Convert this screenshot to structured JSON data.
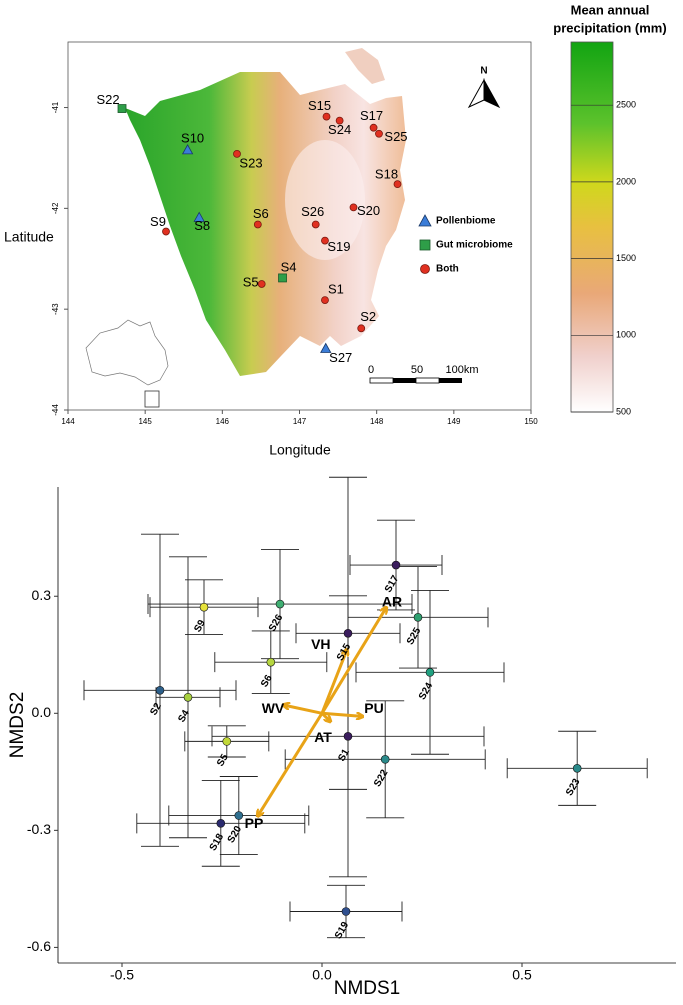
{
  "chart_data": [
    {
      "type": "map",
      "x_label": "Longitude",
      "y_label": "Latitude",
      "xlim": [
        144,
        150
      ],
      "ylim": [
        -44,
        -40.35
      ],
      "xticks": [
        144,
        145,
        146,
        147,
        148,
        149,
        150
      ],
      "yticks": [
        -44,
        -43,
        -42,
        -41
      ],
      "colorbar": {
        "title": [
          "Mean annual",
          "precipitation (mm)"
        ],
        "lim": [
          500,
          2912
        ],
        "ticks": [
          500,
          1000,
          1500,
          2000,
          2500
        ]
      },
      "north": "N",
      "scale_bar": [
        "0",
        "50",
        "100km"
      ],
      "series": [
        {
          "name": "Pollenbiome",
          "marker": "triangle",
          "color": "#3b7dd8",
          "labels": [
            "S10",
            "S8",
            "S27"
          ],
          "x": [
            145.55,
            145.7,
            147.34
          ],
          "y": [
            -41.42,
            -42.09,
            -43.39
          ]
        },
        {
          "name": "Gut microbiome",
          "marker": "square",
          "color": "#2e9e48",
          "labels": [
            "S22",
            "S4"
          ],
          "x": [
            144.7,
            146.78
          ],
          "y": [
            -41.01,
            -42.69
          ]
        },
        {
          "name": "Both",
          "marker": "circle",
          "color": "#e03020",
          "labels": [
            "S23",
            "S15",
            "S24",
            "S17",
            "S25",
            "S18",
            "S26",
            "S20",
            "S19",
            "S6",
            "S9",
            "S5",
            "S1",
            "S2"
          ],
          "x": [
            146.19,
            147.35,
            147.52,
            147.96,
            148.03,
            148.27,
            147.21,
            147.7,
            147.33,
            146.46,
            145.27,
            146.51,
            147.33,
            147.8
          ],
          "y": [
            -41.46,
            -41.09,
            -41.13,
            -41.2,
            -41.26,
            -41.76,
            -42.16,
            -41.99,
            -42.32,
            -42.16,
            -42.23,
            -42.75,
            -42.91,
            -43.19
          ]
        }
      ]
    },
    {
      "type": "scatter",
      "x_label": "NMDS1",
      "y_label": "NMDS2",
      "xlim": [
        -0.66,
        0.885
      ],
      "ylim": [
        -0.64,
        0.58
      ],
      "xticks": [
        -0.5,
        {
          "value": 0,
          "label": "0.0"
        },
        0.5
      ],
      "yticks": [
        -0.6,
        -0.3,
        {
          "value": 0,
          "label": "0.0"
        },
        0.3
      ],
      "labels": [
        "S2",
        "S4",
        "S9",
        "S26",
        "S6",
        "S5",
        "S1",
        "S22",
        "S24",
        "S25",
        "S23",
        "S18",
        "S20",
        "S19",
        "S17",
        "S15"
      ],
      "x": [
        -0.405,
        -0.335,
        -0.295,
        -0.105,
        -0.128,
        -0.238,
        0.065,
        0.158,
        0.27,
        0.24,
        0.638,
        -0.253,
        -0.208,
        0.06,
        0.185,
        0.065
      ],
      "y": [
        0.059,
        0.041,
        0.272,
        0.28,
        0.131,
        -0.072,
        -0.059,
        -0.118,
        0.105,
        0.246,
        -0.141,
        -0.282,
        -0.262,
        -0.508,
        0.38,
        0.205
      ],
      "xerr": [
        0.19,
        0.08,
        0.135,
        0.33,
        0.14,
        0.105,
        0.34,
        0.25,
        0.185,
        0.175,
        0.175,
        0.21,
        0.175,
        0.14,
        0.115,
        0.13
      ],
      "yerr": [
        0.4,
        0.36,
        0.07,
        0.14,
        0.08,
        0.04,
        0.36,
        0.15,
        0.21,
        0.13,
        0.095,
        0.11,
        0.1,
        0.067,
        0.115,
        0.4
      ],
      "colors": [
        "#2c5f8a",
        "#a8d040",
        "#e6e23a",
        "#3fae72",
        "#b6d640",
        "#c2d838",
        "#3b1d5e",
        "#2a8a8a",
        "#20a080",
        "#2fa070",
        "#2a8a8a",
        "#2a2a6e",
        "#2f6f8f",
        "#2f4f8f",
        "#3b1d5e",
        "#3b1d5e"
      ],
      "vectors": {
        "labels": [
          "AR",
          "VH",
          "PU",
          "WV",
          "AT",
          "PP"
        ],
        "x": [
          0.16,
          0.062,
          0.1,
          -0.095,
          0.02,
          -0.16
        ],
        "y": [
          0.27,
          0.162,
          -0.008,
          0.021,
          -0.02,
          -0.262
        ],
        "label_colors": [
          "#d86fc9",
          "#a57a4e",
          "#a57a4e",
          "#a57a4e",
          "#a57a4e",
          "#d86fc9"
        ],
        "color": "#e8a317"
      }
    }
  ]
}
